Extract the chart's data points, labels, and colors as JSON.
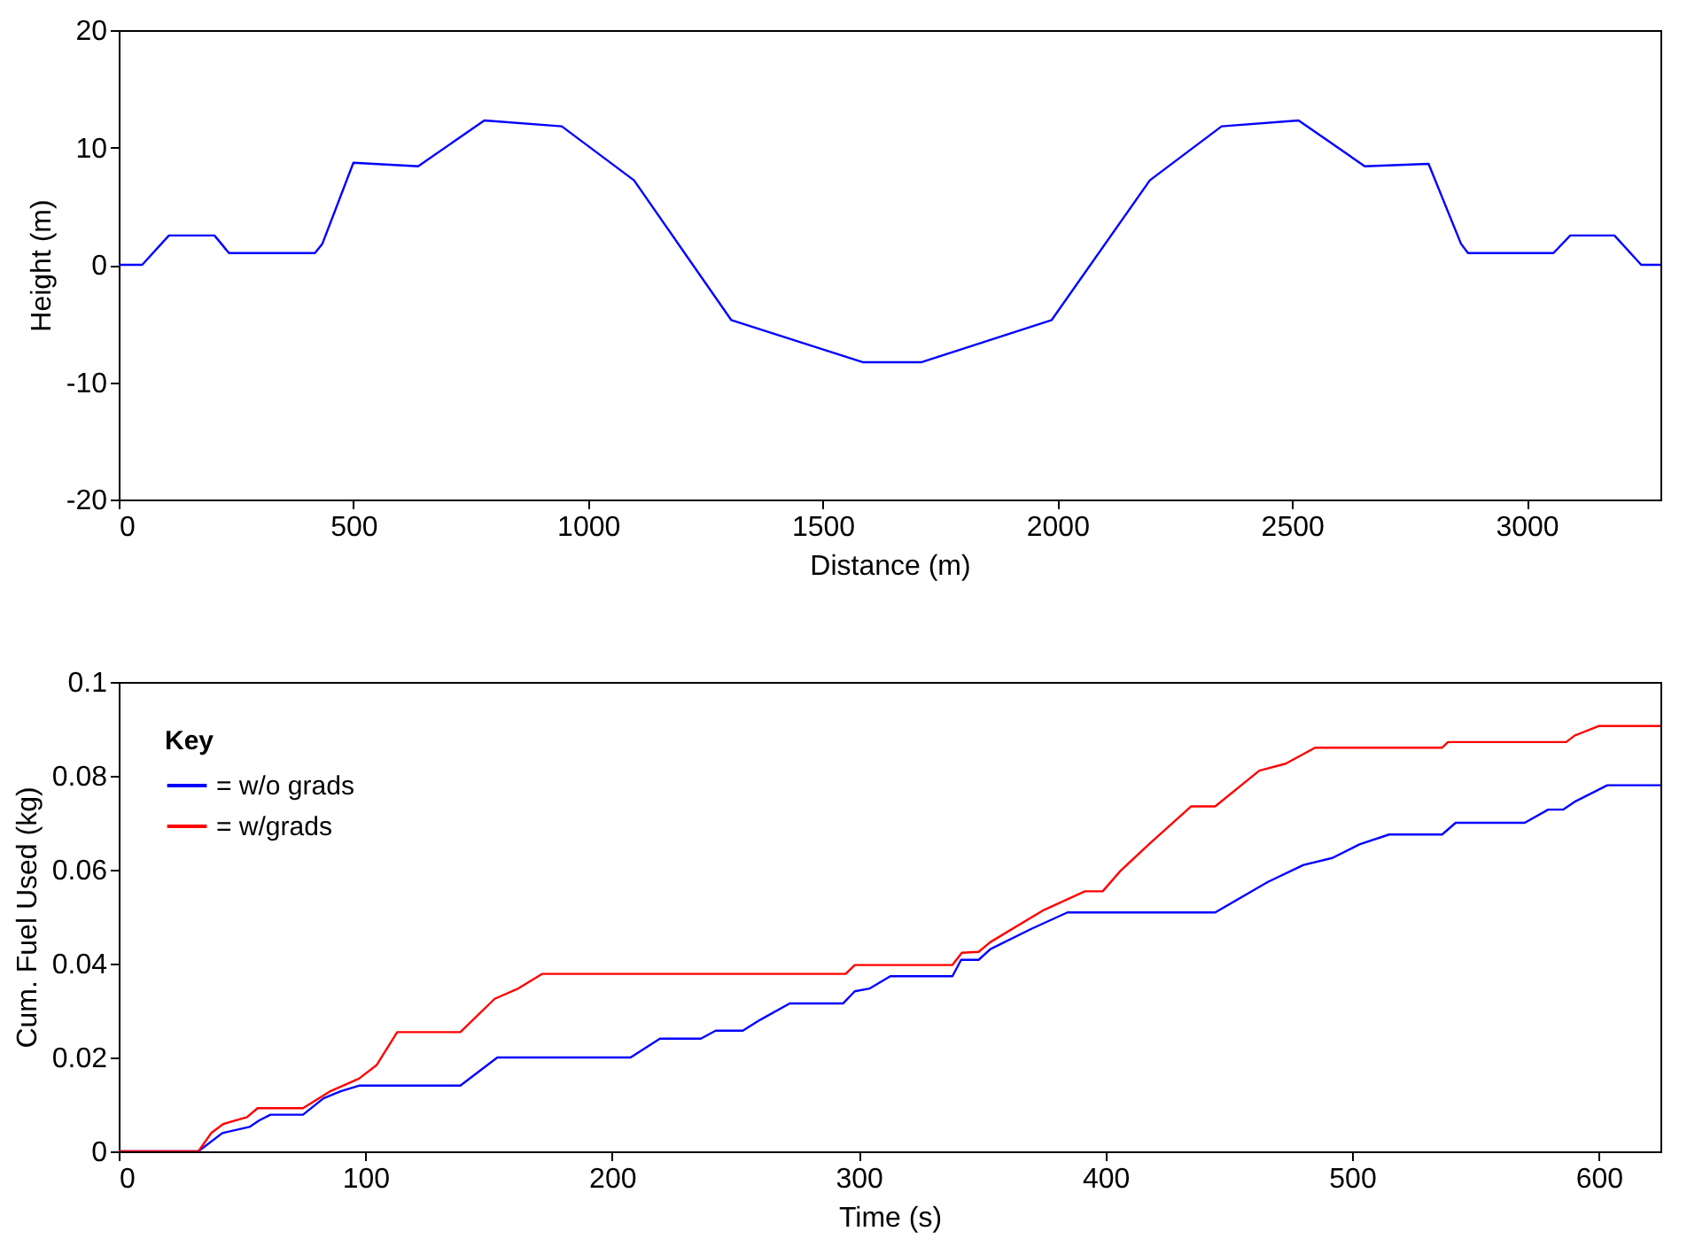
{
  "chart_data": [
    {
      "type": "line",
      "xlabel": "Distance (m)",
      "ylabel": "Height (m)",
      "xlim": [
        0,
        3285
      ],
      "ylim": [
        -20,
        20
      ],
      "xticks": [
        0,
        500,
        1000,
        1500,
        2000,
        2500,
        3000
      ],
      "yticks": [
        -20,
        -10,
        0,
        10,
        20
      ],
      "grid": false,
      "legend": false,
      "series": [
        {
          "color": "#0000ff",
          "x": [
            0,
            50,
            107,
            204,
            235,
            418,
            434,
            500,
            638,
            779,
            944,
            1098,
            1305,
            1585,
            1711,
            1988,
            2197,
            2350,
            2514,
            2655,
            2791,
            2860,
            2875,
            3057,
            3093,
            3187,
            3244,
            3285
          ],
          "values": [
            0,
            0,
            2.5,
            2.5,
            1,
            1,
            1.8,
            8.7,
            8.4,
            12.3,
            11.8,
            7.2,
            -4.7,
            -8.3,
            -8.3,
            -4.7,
            7.2,
            11.8,
            12.3,
            8.4,
            8.6,
            1.8,
            1,
            1,
            2.5,
            2.5,
            0,
            0
          ]
        }
      ]
    },
    {
      "type": "line",
      "xlabel": "Time (s)",
      "ylabel": "Cum. Fuel Used (kg)",
      "xlim": [
        0,
        625
      ],
      "ylim": [
        0,
        0.1
      ],
      "xticks": [
        0,
        100,
        200,
        300,
        400,
        500,
        600
      ],
      "yticks": [
        0,
        0.02,
        0.04,
        0.06,
        0.08,
        0.1
      ],
      "grid": false,
      "legend": "top left",
      "legend_title": "Key",
      "series": [
        {
          "name": "= w/o grads",
          "color": "#0000ff",
          "x": [
            0,
            32.3,
            42,
            53,
            57,
            61.5,
            74.7,
            83,
            90,
            97.4,
            138.5,
            153.5,
            207.5,
            219.4,
            236,
            242,
            253,
            260,
            272,
            293.6,
            298.4,
            304.5,
            312.8,
            338,
            341.5,
            348.6,
            353.4,
            370,
            384.6,
            444.5,
            465.9,
            480.3,
            492,
            503,
            515,
            536.5,
            542,
            570,
            579.5,
            585.5,
            590.3,
            603.5,
            625
          ],
          "values": [
            0,
            0,
            0.0039,
            0.0052,
            0.0066,
            0.0078,
            0.0078,
            0.0113,
            0.0128,
            0.014,
            0.014,
            0.02,
            0.02,
            0.024,
            0.024,
            0.0257,
            0.0257,
            0.028,
            0.0315,
            0.0315,
            0.0341,
            0.0347,
            0.0373,
            0.0373,
            0.0408,
            0.0408,
            0.0431,
            0.0474,
            0.0509,
            0.0509,
            0.0574,
            0.061,
            0.0625,
            0.0654,
            0.0675,
            0.0675,
            0.07,
            0.07,
            0.0728,
            0.0728,
            0.0745,
            0.078,
            0.078
          ]
        },
        {
          "name": "= w/grads",
          "color": "#ff0000",
          "x": [
            0,
            32.3,
            37.5,
            42.3,
            52,
            56.3,
            74.7,
            85.4,
            97.4,
            104.6,
            112.9,
            138.5,
            152.4,
            162,
            171.6,
            294.7,
            298.4,
            338,
            341.8,
            348.6,
            353.4,
            375,
            391.7,
            398.9,
            406,
            418,
            434.8,
            444.5,
            462.4,
            473.1,
            485,
            536.5,
            538.9,
            586.8,
            590.3,
            599.9,
            625
          ],
          "values": [
            0,
            0,
            0.0039,
            0.0058,
            0.0073,
            0.0092,
            0.0092,
            0.0127,
            0.0155,
            0.0184,
            0.0254,
            0.0254,
            0.0325,
            0.0347,
            0.0378,
            0.0378,
            0.0397,
            0.0397,
            0.0423,
            0.0425,
            0.0446,
            0.0514,
            0.0554,
            0.0554,
            0.0597,
            0.0656,
            0.0735,
            0.0735,
            0.0811,
            0.0826,
            0.086,
            0.086,
            0.0872,
            0.0872,
            0.0886,
            0.0906,
            0.0906
          ]
        }
      ]
    }
  ]
}
